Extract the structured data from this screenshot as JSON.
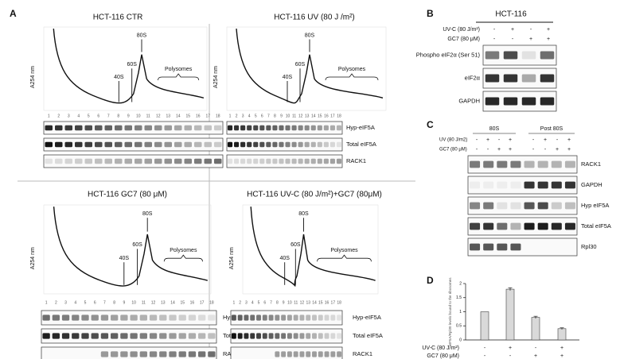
{
  "panel_a": {
    "label": "A",
    "fraction_numbers": [
      1,
      2,
      3,
      4,
      5,
      6,
      7,
      8,
      9,
      10,
      11,
      12,
      13,
      14,
      15,
      16,
      17,
      18
    ],
    "polysomes_label": "Polysomes",
    "subpanels": [
      {
        "title": "HCT-116 CTR",
        "y_label": "A254 nm",
        "peaks": [
          "40S",
          "60S",
          "80S"
        ],
        "blots": [
          "Hyp-eIF5A",
          "Total eIF5A",
          "RACK1"
        ]
      },
      {
        "title": "HCT-116 UV (80 J /m²)",
        "y_label": "A254 nm",
        "peaks": [
          "40S",
          "60S",
          "80S"
        ],
        "blots": [
          "Hyp-eIF5A",
          "Total eIF5A",
          "RACK1"
        ]
      },
      {
        "title": "HCT-116 GC7 (80 μM)",
        "y_label": "A254 nm",
        "peaks": [
          "40S",
          "60S",
          "80S"
        ],
        "blots": [
          "Hyp-eIF5A",
          "Total eIF5A",
          "RACK1"
        ]
      },
      {
        "title": "HCT-116 UV-C (80 J/m²)+GC7 (80μM)",
        "y_label": "A254 nm",
        "peaks": [
          "40S",
          "60S",
          "80S"
        ],
        "blots": [
          "Hyp-eIF5A",
          "Total eIF5A",
          "RACK1"
        ]
      }
    ]
  },
  "panel_b": {
    "label": "B",
    "title": "HCT-116",
    "condition_rows": [
      {
        "label": "UV-C (80 J/m²)",
        "signs": [
          "-",
          "+",
          "-",
          "+"
        ]
      },
      {
        "label": "GC7 (80 μM)",
        "signs": [
          "-",
          "-",
          "+",
          "+"
        ]
      }
    ],
    "blots": [
      "Phospho eIF2α (Ser 51)",
      "eIF2α",
      "GAPDH"
    ]
  },
  "panel_c": {
    "label": "C",
    "groups": [
      "80S",
      "Post 80S"
    ],
    "condition_rows": [
      {
        "label": "UV (80 J/m2)",
        "signs": [
          "-",
          "+",
          "-",
          "+",
          "-",
          "+",
          "-",
          "+"
        ]
      },
      {
        "label": "GC7 (80 μM)",
        "signs": [
          "-",
          "-",
          "+",
          "+",
          "-",
          "-",
          "+",
          "+"
        ]
      }
    ],
    "blots": [
      "RACK1",
      "GAPDH",
      "Hyp eIF5A",
      "Total eIF5A",
      "Rpl30"
    ]
  },
  "chart_data": {
    "type": "bar",
    "panel_label": "D",
    "y_label": "eIF5A/Rpl30 levels bound to the ribosomes",
    "values": [
      1,
      1.8,
      0.8,
      0.4
    ],
    "errors": [
      0,
      0.05,
      0.04,
      0.03
    ],
    "color": "#d9d9d9",
    "ylim": [
      0,
      2
    ],
    "yticks": [
      0,
      0.5,
      1,
      1.5,
      2
    ],
    "condition_rows": [
      {
        "label": "UV-C (80 J/m²)",
        "signs": [
          "-",
          "+",
          "-",
          "+"
        ]
      },
      {
        "label": "GC7 (80 μM)",
        "signs": [
          "-",
          "-",
          "+",
          "+"
        ]
      }
    ]
  }
}
